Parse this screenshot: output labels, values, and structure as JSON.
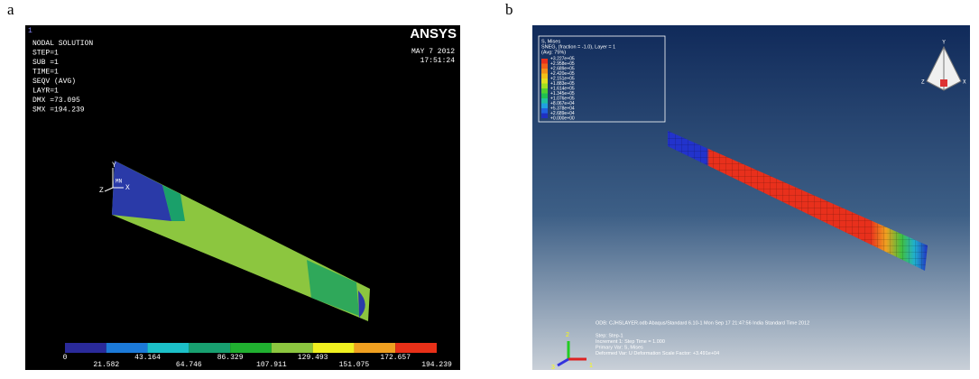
{
  "panel_a": {
    "label": "a",
    "corner": "1",
    "lines": [
      "NODAL SOLUTION",
      "STEP=1",
      "SUB =1",
      "TIME=1",
      "SEQV     (AVG)",
      "LAYR=1",
      "DMX =73.095",
      "SMX =194.239"
    ],
    "logo": "ANSYS",
    "date": "MAY  7 2012",
    "time": "17:51:24",
    "axes": [
      "Y",
      "X",
      "Z",
      "MN"
    ],
    "legend": [
      "0",
      "21.582",
      "43.164",
      "64.746",
      "86.329",
      "107.911",
      "129.493",
      "151.075",
      "172.657",
      "194.239"
    ]
  },
  "panel_b": {
    "label": "b",
    "legend_title": [
      "S, Mises",
      "SNEG, (fraction = -1.0), Layer = 1",
      "(Avg: 75%)"
    ],
    "legend": [
      "+3.227e+05",
      "+2.958e+05",
      "+2.689e+05",
      "+2.420e+05",
      "+2.151e+05",
      "+1.883e+05",
      "+1.614e+05",
      "+1.345e+05",
      "+1.076e+05",
      "+8.067e+04",
      "+5.378e+04",
      "+2.689e+04",
      "+0.000e+00"
    ],
    "odb": "ODB: CJHSLAYER.odb    Abaqus/Standard 6.10-1    Mon Sep 17 21:47:56 India Standard Time 2012",
    "info": [
      "Step: Step-1",
      "Increment    1: Step Time =    1.000",
      "Primary Var: S, Mises",
      "Deformed Var: U   Deformation Scale Factor: +3.491e+04"
    ],
    "triad": [
      "2",
      "3",
      "1"
    ],
    "view_axes": [
      "Y",
      "Z",
      "X"
    ]
  }
}
